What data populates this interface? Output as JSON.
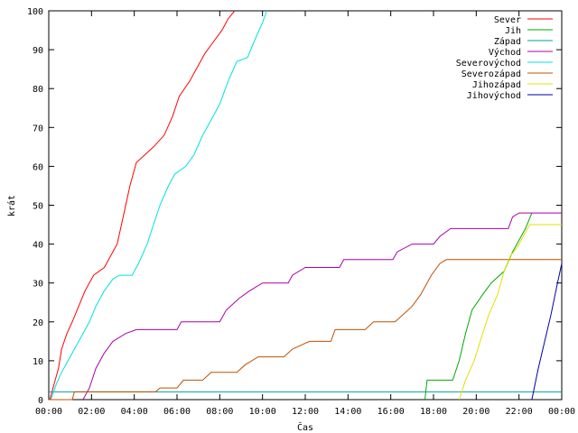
{
  "chart_data": {
    "type": "line",
    "title": "",
    "xlabel": "Čas",
    "ylabel": "krát",
    "xlim": [
      0,
      24
    ],
    "ylim": [
      0,
      100
    ],
    "grid": false,
    "legend_position": "top-right",
    "x_ticks": [
      {
        "value": 0,
        "label": "00:00"
      },
      {
        "value": 2,
        "label": "02:00"
      },
      {
        "value": 4,
        "label": "04:00"
      },
      {
        "value": 6,
        "label": "06:00"
      },
      {
        "value": 8,
        "label": "08:00"
      },
      {
        "value": 10,
        "label": "10:00"
      },
      {
        "value": 12,
        "label": "12:00"
      },
      {
        "value": 14,
        "label": "14:00"
      },
      {
        "value": 16,
        "label": "16:00"
      },
      {
        "value": 18,
        "label": "18:00"
      },
      {
        "value": 20,
        "label": "20:00"
      },
      {
        "value": 22,
        "label": "22:00"
      },
      {
        "value": 24,
        "label": "00:00"
      }
    ],
    "y_ticks": [
      0,
      10,
      20,
      30,
      40,
      50,
      60,
      70,
      80,
      90,
      100
    ],
    "series": [
      {
        "name": "Sever",
        "color": "#ff0000",
        "points": [
          [
            0.05,
            0
          ],
          [
            0.2,
            3
          ],
          [
            0.45,
            8
          ],
          [
            0.6,
            13
          ],
          [
            0.85,
            17
          ],
          [
            1.1,
            20
          ],
          [
            1.4,
            24
          ],
          [
            1.7,
            28
          ],
          [
            2.1,
            32
          ],
          [
            2.6,
            34
          ],
          [
            2.9,
            37
          ],
          [
            3.2,
            40
          ],
          [
            3.4,
            45
          ],
          [
            3.6,
            50
          ],
          [
            3.8,
            55
          ],
          [
            4.1,
            61
          ],
          [
            4.5,
            63
          ],
          [
            4.9,
            65
          ],
          [
            5.4,
            68
          ],
          [
            5.8,
            73
          ],
          [
            6.1,
            78
          ],
          [
            6.6,
            82
          ],
          [
            7.0,
            86
          ],
          [
            7.3,
            89
          ],
          [
            7.7,
            92
          ],
          [
            8.1,
            95
          ],
          [
            8.4,
            98
          ],
          [
            8.7,
            100
          ]
        ]
      },
      {
        "name": "Jih",
        "color": "#00aa00",
        "points": [
          [
            17.6,
            0
          ],
          [
            17.7,
            5
          ],
          [
            18.9,
            5
          ],
          [
            19.2,
            10
          ],
          [
            19.5,
            17
          ],
          [
            19.8,
            23
          ],
          [
            20.3,
            27
          ],
          [
            20.7,
            30
          ],
          [
            21.3,
            33
          ],
          [
            21.7,
            38
          ],
          [
            22.3,
            44
          ],
          [
            22.6,
            48
          ]
        ]
      },
      {
        "name": "Západ",
        "color": "#00a0a0",
        "points": [
          [
            0,
            2
          ],
          [
            24,
            2
          ]
        ]
      },
      {
        "name": "Východ",
        "color": "#aa00aa",
        "points": [
          [
            1.6,
            0
          ],
          [
            1.9,
            3
          ],
          [
            2.2,
            8
          ],
          [
            2.6,
            12
          ],
          [
            3.0,
            15
          ],
          [
            3.6,
            17
          ],
          [
            4.1,
            18
          ],
          [
            6.0,
            18
          ],
          [
            6.2,
            20
          ],
          [
            8.0,
            20
          ],
          [
            8.3,
            23
          ],
          [
            8.9,
            26
          ],
          [
            9.4,
            28
          ],
          [
            10.0,
            30
          ],
          [
            11.2,
            30
          ],
          [
            11.4,
            32
          ],
          [
            12.0,
            34
          ],
          [
            13.6,
            34
          ],
          [
            13.8,
            36
          ],
          [
            16.1,
            36
          ],
          [
            16.3,
            38
          ],
          [
            17.0,
            40
          ],
          [
            18.0,
            40
          ],
          [
            18.3,
            42
          ],
          [
            18.8,
            44
          ],
          [
            21.5,
            44
          ],
          [
            21.7,
            47
          ],
          [
            22.0,
            48
          ],
          [
            24,
            48
          ]
        ]
      },
      {
        "name": "Severovýchod",
        "color": "#00e0e0",
        "points": [
          [
            0.1,
            0
          ],
          [
            0.35,
            4
          ],
          [
            0.6,
            7
          ],
          [
            0.9,
            10
          ],
          [
            1.2,
            13
          ],
          [
            1.6,
            17
          ],
          [
            1.9,
            20
          ],
          [
            2.2,
            24
          ],
          [
            2.6,
            28
          ],
          [
            3.0,
            31
          ],
          [
            3.3,
            32
          ],
          [
            3.9,
            32
          ],
          [
            4.2,
            35
          ],
          [
            4.6,
            40
          ],
          [
            4.9,
            45
          ],
          [
            5.2,
            50
          ],
          [
            5.6,
            55
          ],
          [
            5.9,
            58
          ],
          [
            6.4,
            60
          ],
          [
            6.8,
            63
          ],
          [
            7.2,
            68
          ],
          [
            7.6,
            72
          ],
          [
            8.0,
            76
          ],
          [
            8.4,
            82
          ],
          [
            8.8,
            87
          ],
          [
            9.3,
            88
          ],
          [
            9.6,
            92
          ],
          [
            10.0,
            97
          ],
          [
            10.2,
            100
          ]
        ]
      },
      {
        "name": "Severozápad",
        "color": "#c05000",
        "points": [
          [
            0,
            0
          ],
          [
            1.1,
            0
          ],
          [
            1.2,
            2
          ],
          [
            5.0,
            2
          ],
          [
            5.2,
            3
          ],
          [
            6.0,
            3
          ],
          [
            6.3,
            5
          ],
          [
            7.2,
            5
          ],
          [
            7.6,
            7
          ],
          [
            8.8,
            7
          ],
          [
            9.2,
            9
          ],
          [
            9.8,
            11
          ],
          [
            11.0,
            11
          ],
          [
            11.4,
            13
          ],
          [
            12.2,
            15
          ],
          [
            13.2,
            15
          ],
          [
            13.4,
            18
          ],
          [
            14.8,
            18
          ],
          [
            15.2,
            20
          ],
          [
            16.2,
            20
          ],
          [
            16.6,
            22
          ],
          [
            17.0,
            24
          ],
          [
            17.4,
            27
          ],
          [
            17.9,
            32
          ],
          [
            18.3,
            35
          ],
          [
            18.6,
            36
          ],
          [
            24,
            36
          ]
        ]
      },
      {
        "name": "Jihozápad",
        "color": "#e0e000",
        "points": [
          [
            19.2,
            0
          ],
          [
            19.5,
            5
          ],
          [
            19.9,
            10
          ],
          [
            20.3,
            17
          ],
          [
            20.6,
            22
          ],
          [
            21.0,
            27
          ],
          [
            21.3,
            33
          ],
          [
            21.6,
            37
          ],
          [
            21.9,
            39
          ],
          [
            22.2,
            42
          ],
          [
            22.5,
            45
          ],
          [
            24,
            45
          ]
        ]
      },
      {
        "name": "Jihovýchod",
        "color": "#0000aa",
        "points": [
          [
            22.6,
            0
          ],
          [
            22.9,
            8
          ],
          [
            23.2,
            15
          ],
          [
            23.5,
            22
          ],
          [
            23.8,
            30
          ],
          [
            24,
            35
          ]
        ]
      }
    ]
  }
}
